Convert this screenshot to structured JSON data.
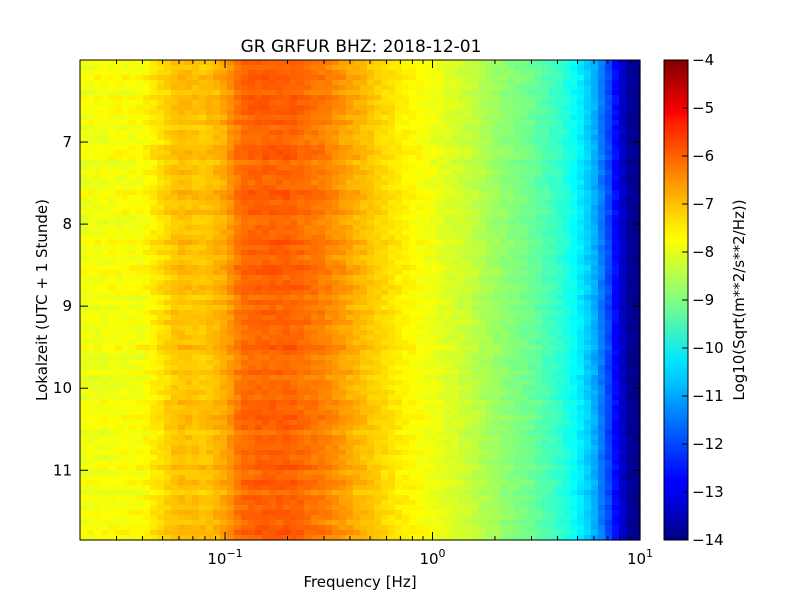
{
  "chart_data": {
    "type": "heatmap",
    "title": "GR GRFUR BHZ: 2018-12-01",
    "xlabel": "Frequency [Hz]",
    "ylabel": "Lokalzeit (UTC + 1 Stunde)",
    "x_scale": "log",
    "xlim": [
      0.02,
      10
    ],
    "x_ticks": [
      {
        "value": 0.1,
        "base": "10",
        "exp": "−1"
      },
      {
        "value": 1,
        "base": "10",
        "exp": "0"
      },
      {
        "value": 10,
        "base": "10",
        "exp": "1"
      }
    ],
    "ylim": [
      6,
      11.85
    ],
    "y_inverted": true,
    "y_ticks": [
      7,
      8,
      9,
      10,
      11
    ],
    "colorbar": {
      "label": "Log10(Sqrt(m**2/s**2/Hz))",
      "range": [
        -14,
        -4
      ],
      "ticks": [
        -4,
        -5,
        -6,
        -7,
        -8,
        -9,
        -10,
        -11,
        -12,
        -13,
        -14
      ],
      "colormap": "jet"
    },
    "spectrum_profile": {
      "frequency_hz": [
        0.02,
        0.04,
        0.06,
        0.08,
        0.1,
        0.12,
        0.15,
        0.2,
        0.3,
        0.4,
        0.5,
        0.7,
        1,
        1.5,
        2,
        3,
        4,
        5,
        6,
        7,
        8,
        9,
        10
      ],
      "log10_amplitude": [
        -7.9,
        -7.8,
        -7.1,
        -7.2,
        -6.9,
        -6.3,
        -6.2,
        -6.2,
        -6.5,
        -6.9,
        -7.2,
        -7.6,
        -7.9,
        -8.3,
        -8.7,
        -9.2,
        -9.7,
        -10.3,
        -11.0,
        -12.0,
        -13.1,
        -13.8,
        -14.0
      ]
    }
  }
}
